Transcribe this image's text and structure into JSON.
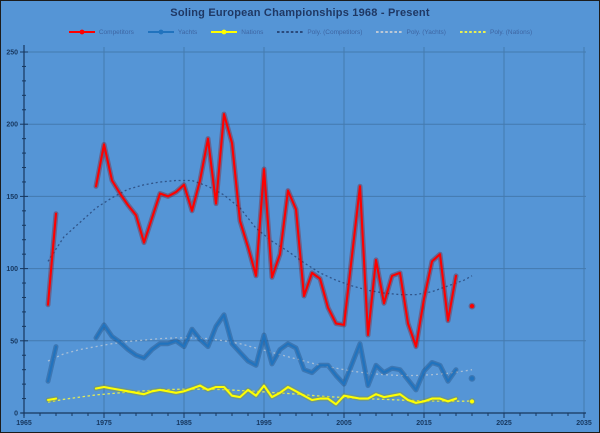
{
  "window": {
    "title": "Soling European Championships 1968 - Present"
  },
  "chart_data": {
    "type": "line",
    "title": "Soling European Championships 1968 - Present",
    "xlabel": "",
    "ylabel": "",
    "x_axis": {
      "min": 1965,
      "max": 2035,
      "tick_step": 10,
      "minor_step": 2,
      "ticks": [
        "1965",
        "1975",
        "1985",
        "1995",
        "2005",
        "2015",
        "2025",
        "2035"
      ]
    },
    "y_axis": {
      "min": 0,
      "max": 250,
      "tick_step": 50,
      "minor_step": 10,
      "ticks": [
        "0",
        "50",
        "100",
        "150",
        "200",
        "250"
      ]
    },
    "grid": true,
    "legend_position": "top",
    "legend_items": [
      {
        "label": "Competitors",
        "type": "line-marker",
        "color": "#fe0000"
      },
      {
        "label": "Yachts",
        "type": "line-marker",
        "color": "#2173be"
      },
      {
        "label": "Nations",
        "type": "line-marker",
        "color": "#ffff00"
      },
      {
        "label": "Poly. (Competitors)",
        "type": "dash",
        "color": "#2a4a7c"
      },
      {
        "label": "Poly. (Yachts)",
        "type": "dash",
        "color": "#bcc8d6"
      },
      {
        "label": "Poly. (Nations)",
        "type": "dash",
        "color": "#e8ef52"
      }
    ],
    "series": [
      {
        "name": "Competitors",
        "color": "#fe0000",
        "glow": "#8b0000",
        "segments": [
          [
            [
              1968,
              75
            ],
            [
              1969,
              138
            ]
          ],
          [
            [
              1974,
              157
            ],
            [
              1975,
              186
            ],
            [
              1976,
              161
            ],
            [
              1977,
              152
            ],
            [
              1978,
              144
            ],
            [
              1979,
              137
            ],
            [
              1980,
              118
            ],
            [
              1981,
              135
            ],
            [
              1982,
              152
            ],
            [
              1983,
              150
            ],
            [
              1984,
              153
            ],
            [
              1985,
              158
            ],
            [
              1986,
              140
            ],
            [
              1987,
              161
            ],
            [
              1988,
              190
            ],
            [
              1989,
              145
            ],
            [
              1990,
              207
            ],
            [
              1991,
              187
            ],
            [
              1992,
              133
            ],
            [
              1993,
              115
            ],
            [
              1994,
              95
            ],
            [
              1995,
              169
            ],
            [
              1996,
              94
            ],
            [
              1997,
              110
            ],
            [
              1998,
              154
            ],
            [
              1999,
              141
            ],
            [
              2000,
              81
            ],
            [
              2001,
              97
            ],
            [
              2002,
              93
            ],
            [
              2003,
              73
            ],
            [
              2004,
              62
            ],
            [
              2005,
              61
            ],
            [
              2007,
              157
            ],
            [
              2008,
              54
            ],
            [
              2009,
              106
            ],
            [
              2010,
              76
            ],
            [
              2011,
              95
            ],
            [
              2012,
              97
            ],
            [
              2013,
              62
            ],
            [
              2014,
              46
            ],
            [
              2015,
              79
            ],
            [
              2016,
              105
            ],
            [
              2017,
              110
            ],
            [
              2018,
              64
            ],
            [
              2019,
              95
            ]
          ]
        ],
        "isolated_points": [
          [
            2021,
            74
          ]
        ]
      },
      {
        "name": "Yachts",
        "color": "#2173be",
        "glow": "#0d3a6e",
        "segments": [
          [
            [
              1968,
              22
            ],
            [
              1969,
              46
            ]
          ],
          [
            [
              1974,
              52
            ],
            [
              1975,
              61
            ],
            [
              1976,
              53
            ],
            [
              1977,
              49
            ],
            [
              1978,
              44
            ],
            [
              1979,
              40
            ],
            [
              1980,
              38
            ],
            [
              1981,
              44
            ],
            [
              1982,
              48
            ],
            [
              1983,
              48
            ],
            [
              1984,
              50
            ],
            [
              1985,
              46
            ],
            [
              1986,
              58
            ],
            [
              1987,
              51
            ],
            [
              1988,
              46
            ],
            [
              1989,
              60
            ],
            [
              1990,
              68
            ],
            [
              1991,
              48
            ],
            [
              1992,
              42
            ],
            [
              1993,
              36
            ],
            [
              1994,
              33
            ],
            [
              1995,
              54
            ],
            [
              1996,
              34
            ],
            [
              1997,
              44
            ],
            [
              1998,
              48
            ],
            [
              1999,
              45
            ],
            [
              2000,
              30
            ],
            [
              2001,
              28
            ],
            [
              2002,
              33
            ],
            [
              2003,
              33
            ],
            [
              2004,
              26
            ],
            [
              2005,
              20
            ],
            [
              2007,
              48
            ],
            [
              2008,
              19
            ],
            [
              2009,
              33
            ],
            [
              2010,
              28
            ],
            [
              2011,
              31
            ],
            [
              2012,
              30
            ],
            [
              2013,
              23
            ],
            [
              2014,
              16
            ],
            [
              2015,
              29
            ],
            [
              2016,
              35
            ],
            [
              2017,
              33
            ],
            [
              2018,
              22
            ],
            [
              2019,
              30
            ]
          ]
        ],
        "isolated_points": [
          [
            2021,
            24
          ]
        ]
      },
      {
        "name": "Nations",
        "color": "#ffff00",
        "glow": "#9a9a00",
        "segments": [
          [
            [
              1968,
              9
            ],
            [
              1969,
              10
            ]
          ],
          [
            [
              1974,
              17
            ],
            [
              1975,
              18
            ],
            [
              1976,
              17
            ],
            [
              1977,
              16
            ],
            [
              1978,
              15
            ],
            [
              1979,
              14
            ],
            [
              1980,
              13
            ],
            [
              1981,
              15
            ],
            [
              1982,
              16
            ],
            [
              1983,
              15
            ],
            [
              1984,
              14
            ],
            [
              1985,
              15
            ],
            [
              1986,
              17
            ],
            [
              1987,
              19
            ],
            [
              1988,
              16
            ],
            [
              1989,
              18
            ],
            [
              1990,
              18
            ],
            [
              1991,
              12
            ],
            [
              1992,
              11
            ],
            [
              1993,
              16
            ],
            [
              1994,
              12
            ],
            [
              1995,
              19
            ],
            [
              1996,
              11
            ],
            [
              1997,
              14
            ],
            [
              1998,
              18
            ],
            [
              1999,
              15
            ],
            [
              2000,
              12
            ],
            [
              2001,
              9
            ],
            [
              2002,
              10
            ],
            [
              2003,
              10
            ],
            [
              2004,
              6
            ],
            [
              2005,
              12
            ],
            [
              2007,
              10
            ],
            [
              2008,
              10
            ],
            [
              2009,
              13
            ],
            [
              2010,
              11
            ],
            [
              2011,
              12
            ],
            [
              2012,
              13
            ],
            [
              2013,
              9
            ],
            [
              2014,
              7
            ],
            [
              2015,
              8
            ],
            [
              2016,
              10
            ],
            [
              2017,
              10
            ],
            [
              2018,
              8
            ],
            [
              2019,
              10
            ]
          ]
        ],
        "isolated_points": [
          [
            2021,
            8
          ]
        ]
      }
    ],
    "trendlines": [
      {
        "name": "Poly. (Competitors)",
        "color": "#2a4a7c",
        "dash": "2,2.6",
        "opacity": 0.85,
        "points": [
          [
            1968,
            105
          ],
          [
            1970,
            122
          ],
          [
            1972,
            132
          ],
          [
            1974,
            142
          ],
          [
            1976,
            149
          ],
          [
            1978,
            155
          ],
          [
            1980,
            158
          ],
          [
            1982,
            160
          ],
          [
            1984,
            161
          ],
          [
            1986,
            161
          ],
          [
            1988,
            157
          ],
          [
            1990,
            151
          ],
          [
            1992,
            142
          ],
          [
            1994,
            128
          ],
          [
            1996,
            119
          ],
          [
            1998,
            112
          ],
          [
            2000,
            104
          ],
          [
            2002,
            97
          ],
          [
            2004,
            92
          ],
          [
            2006,
            88
          ],
          [
            2008,
            85
          ],
          [
            2010,
            83
          ],
          [
            2012,
            82
          ],
          [
            2014,
            82
          ],
          [
            2016,
            84
          ],
          [
            2018,
            88
          ],
          [
            2020,
            92
          ],
          [
            2021,
            95
          ]
        ]
      },
      {
        "name": "Poly. (Yachts)",
        "color": "#bcc8d6",
        "dash": "2,3",
        "opacity": 0.8,
        "points": [
          [
            1968,
            36
          ],
          [
            1970,
            41
          ],
          [
            1972,
            44
          ],
          [
            1974,
            46
          ],
          [
            1976,
            48
          ],
          [
            1978,
            49.5
          ],
          [
            1980,
            50.5
          ],
          [
            1982,
            51.5
          ],
          [
            1984,
            52
          ],
          [
            1986,
            52
          ],
          [
            1988,
            51.5
          ],
          [
            1990,
            50
          ],
          [
            1992,
            48
          ],
          [
            1994,
            45
          ],
          [
            1996,
            42
          ],
          [
            1998,
            39
          ],
          [
            2000,
            36
          ],
          [
            2002,
            33
          ],
          [
            2004,
            31
          ],
          [
            2006,
            29
          ],
          [
            2008,
            27.5
          ],
          [
            2010,
            26.5
          ],
          [
            2012,
            26
          ],
          [
            2014,
            26
          ],
          [
            2016,
            26.5
          ],
          [
            2018,
            27.5
          ],
          [
            2020,
            29
          ],
          [
            2021,
            30
          ]
        ]
      },
      {
        "name": "Poly. (Nations)",
        "color": "#e8ef52",
        "dash": "2.5,2.5",
        "opacity": 0.95,
        "points": [
          [
            1968,
            7.5
          ],
          [
            1970,
            9.5
          ],
          [
            1972,
            11
          ],
          [
            1974,
            12.5
          ],
          [
            1976,
            13.5
          ],
          [
            1978,
            14.5
          ],
          [
            1980,
            15.3
          ],
          [
            1982,
            16
          ],
          [
            1984,
            16.4
          ],
          [
            1986,
            16.5
          ],
          [
            1988,
            16.5
          ],
          [
            1990,
            16.2
          ],
          [
            1992,
            15.6
          ],
          [
            1994,
            15
          ],
          [
            1996,
            14.2
          ],
          [
            1998,
            13.5
          ],
          [
            2000,
            12.6
          ],
          [
            2002,
            11.7
          ],
          [
            2004,
            11
          ],
          [
            2006,
            10.4
          ],
          [
            2008,
            9.9
          ],
          [
            2010,
            9.4
          ],
          [
            2012,
            9
          ],
          [
            2014,
            8.6
          ],
          [
            2016,
            8.3
          ],
          [
            2018,
            8.2
          ],
          [
            2020,
            8.2
          ],
          [
            2021,
            8.3
          ]
        ]
      }
    ],
    "colors": {
      "background": "#5595d6",
      "gridline": "#447aae",
      "axis": "#17375e",
      "tick_text": "#17375e",
      "title_text": "#1f3864",
      "legend_text": "#3e66a3"
    }
  }
}
